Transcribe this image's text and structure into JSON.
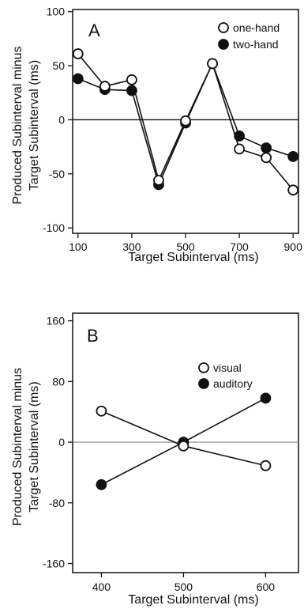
{
  "chart_data": [
    {
      "type": "line",
      "panel_label": "A",
      "xlabel": "Target Subinterval (ms)",
      "ylabel_line1": "Produced Subinterval minus",
      "ylabel_line2": "Target Subinterval (ms)",
      "x": [
        100,
        200,
        300,
        400,
        500,
        600,
        700,
        800,
        900
      ],
      "xticks": [
        100,
        300,
        500,
        700,
        900
      ],
      "yticks": [
        100,
        50,
        0,
        -50,
        -100
      ],
      "xlim": [
        80,
        920
      ],
      "ylim": [
        -105,
        102
      ],
      "reference_line": 0,
      "legend_position": "top-right",
      "series": [
        {
          "name": "one-hand",
          "marker": "open",
          "values": [
            61,
            31,
            37,
            -56,
            -1,
            52,
            -27,
            -35,
            -65
          ]
        },
        {
          "name": "two-hand",
          "marker": "filled",
          "values": [
            38,
            28,
            27,
            -60,
            -3,
            52,
            -15,
            -26,
            -34
          ]
        }
      ]
    },
    {
      "type": "line",
      "panel_label": "B",
      "xlabel": "Target Subinterval (ms)",
      "ylabel_line1": "Produced Subinterval minus",
      "ylabel_line2": "Target Subinterval (ms)",
      "x": [
        400,
        500,
        600
      ],
      "xticks": [
        400,
        500,
        600
      ],
      "yticks": [
        160,
        80,
        0,
        -80,
        -160
      ],
      "xlim": [
        365,
        640
      ],
      "ylim": [
        -172,
        170
      ],
      "reference_line": 0,
      "legend_position": "top-right",
      "series": [
        {
          "name": "visual",
          "marker": "open",
          "values": [
            41,
            -5,
            -31
          ]
        },
        {
          "name": "auditory",
          "marker": "filled",
          "values": [
            -56,
            0,
            58
          ]
        }
      ]
    }
  ]
}
